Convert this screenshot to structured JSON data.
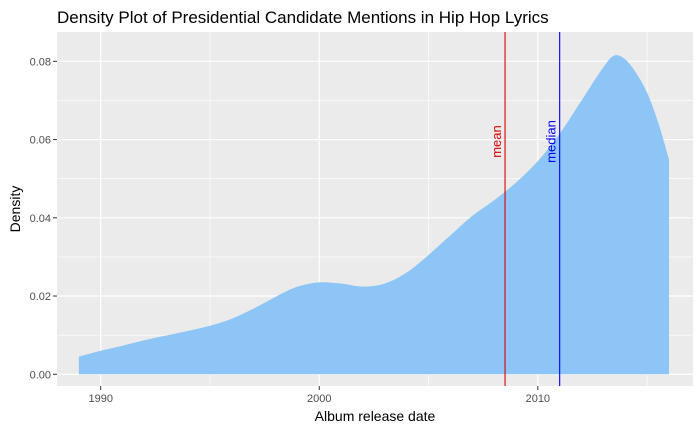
{
  "chart_data": {
    "type": "area",
    "title": "Density Plot of Presidential Candidate Mentions in Hip Hop Lyrics",
    "xlabel": "Album release date",
    "ylabel": "Density",
    "xlim": [
      1988.0,
      2017.1
    ],
    "ylim": [
      -0.003,
      0.0875
    ],
    "x_ticks": [
      1990,
      2000,
      2010
    ],
    "x_minor": [
      1995,
      2005,
      2015
    ],
    "y_ticks": [
      0.0,
      0.02,
      0.04,
      0.06,
      0.08
    ],
    "y_tick_labels": [
      "0.00",
      "0.02",
      "0.04",
      "0.06",
      "0.08"
    ],
    "grid": true,
    "colors": {
      "fill": "#8cc5f6",
      "panel": "#ebebeb",
      "grid": "#ffffff",
      "mean": "#dd0000",
      "median": "#0000ee"
    },
    "series": [
      {
        "x": [
          1989.0,
          1990.0,
          1991.0,
          1992.0,
          1993.0,
          1994.0,
          1995.0,
          1996.0,
          1997.0,
          1998.0,
          1999.0,
          2000.0,
          2001.0,
          2002.0,
          2003.0,
          2004.0,
          2005.0,
          2006.0,
          2007.0,
          2008.0,
          2009.0,
          2010.0,
          2011.0,
          2012.0,
          2013.0,
          2013.5,
          2014.0,
          2014.5,
          2015.0,
          2015.5,
          2016.0
        ],
        "y": [
          0.0045,
          0.006,
          0.0073,
          0.0087,
          0.0099,
          0.0111,
          0.0124,
          0.0142,
          0.0168,
          0.0198,
          0.0224,
          0.0235,
          0.0232,
          0.0224,
          0.0232,
          0.026,
          0.0305,
          0.0355,
          0.0405,
          0.0445,
          0.049,
          0.0545,
          0.0615,
          0.07,
          0.0785,
          0.0815,
          0.0805,
          0.077,
          0.072,
          0.0645,
          0.055
        ]
      }
    ],
    "reference_lines": [
      {
        "label": "mean",
        "x": 2008.5,
        "color": "#dd0000"
      },
      {
        "label": "median",
        "x": 2011.0,
        "color": "#0000ee"
      }
    ]
  }
}
